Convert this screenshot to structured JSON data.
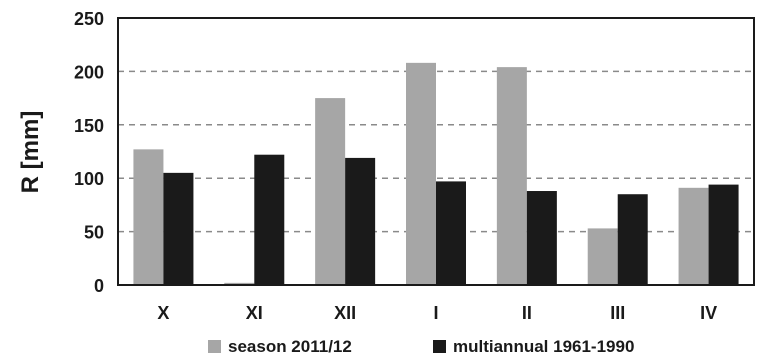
{
  "chart_data": {
    "type": "bar",
    "title": "",
    "xlabel": "",
    "ylabel": "R [mm]",
    "ylim": [
      0,
      250
    ],
    "yticks": [
      0,
      50,
      100,
      150,
      200,
      250
    ],
    "grid": "horizontal-dashed",
    "legend_position": "bottom",
    "categories": [
      "X",
      "XI",
      "XII",
      "I",
      "II",
      "III",
      "IV"
    ],
    "series": [
      {
        "name": "season 2011/12",
        "color": "#a6a6a6",
        "values": [
          127,
          2,
          175,
          208,
          204,
          53,
          91
        ]
      },
      {
        "name": "multiannual 1961-1990",
        "color": "#1a1a1a",
        "values": [
          105,
          122,
          119,
          97,
          88,
          85,
          94
        ]
      }
    ]
  }
}
